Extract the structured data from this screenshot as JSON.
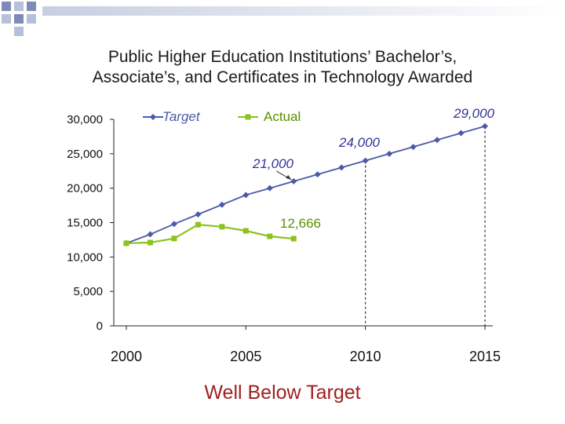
{
  "slide": {
    "title_line1": "Public Higher Education Institutions’ Bachelor’s,",
    "title_line2": "Associate’s, and Certificates in Technology Awarded",
    "footer": "Well Below Target"
  },
  "chart_data": {
    "type": "line",
    "title": "Public Higher Education Institutions’ Bachelor’s, Associate’s, and Certificates in Technology Awarded",
    "xlabel": "",
    "ylabel": "",
    "xlim": [
      2000,
      2015
    ],
    "ylim": [
      0,
      30000
    ],
    "x_ticks": [
      2000,
      2005,
      2010,
      2015
    ],
    "x_tick_labels": [
      "2000",
      "2005",
      "2010",
      "2015"
    ],
    "y_ticks": [
      0,
      5000,
      10000,
      15000,
      20000,
      25000,
      30000
    ],
    "y_tick_labels": [
      "0",
      "5,000",
      "10,000",
      "15,000",
      "20,000",
      "25,000",
      "30,000"
    ],
    "grid": false,
    "legend": "top",
    "series": [
      {
        "name": "Target",
        "color": "#4a5aa8",
        "marker": "diamond",
        "x": [
          2000,
          2001,
          2002,
          2003,
          2004,
          2005,
          2006,
          2007,
          2008,
          2009,
          2010,
          2011,
          2012,
          2013,
          2014,
          2015
        ],
        "values": [
          12000,
          13300,
          14800,
          16200,
          17600,
          19000,
          20000,
          21000,
          22000,
          23000,
          24000,
          25000,
          26000,
          27000,
          28000,
          29000
        ]
      },
      {
        "name": "Actual",
        "color": "#8dc21f",
        "marker": "square",
        "x": [
          2000,
          2001,
          2002,
          2003,
          2004,
          2005,
          2006,
          2007
        ],
        "values": [
          12000,
          12100,
          12700,
          14700,
          14400,
          13800,
          13000,
          12666
        ]
      }
    ],
    "annotations": [
      {
        "text": "29,000",
        "series": "Target",
        "x": 2015,
        "y": 29000
      },
      {
        "text": "24,000",
        "series": "Target",
        "x": 2010,
        "y": 24000
      },
      {
        "text": "21,000",
        "series": "Target",
        "x": 2007,
        "y": 21000
      },
      {
        "text": "12,666",
        "series": "Actual",
        "x": 2007,
        "y": 12666
      }
    ],
    "reference_lines": [
      2010,
      2015
    ]
  }
}
